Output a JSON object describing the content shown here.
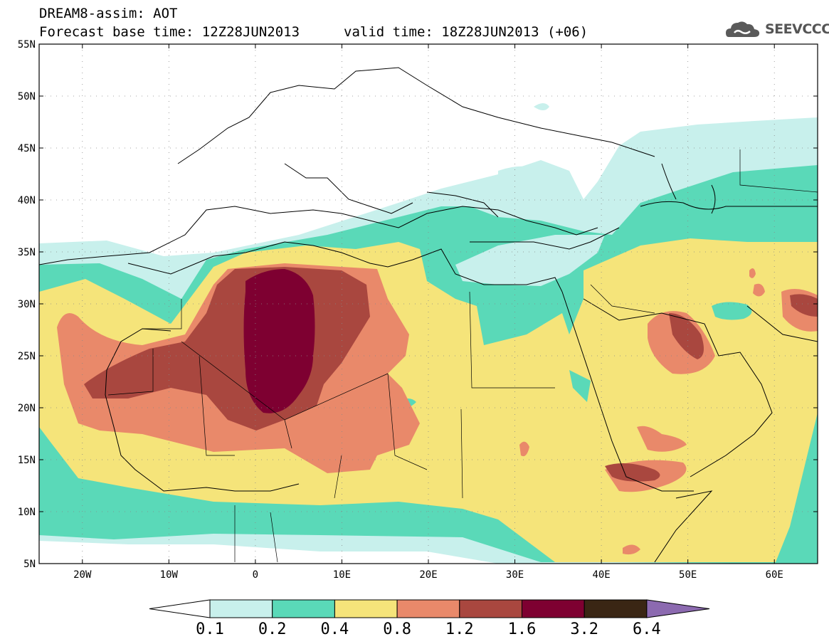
{
  "header": {
    "title": "DREAM8-assim: AOT",
    "base_time": "Forecast base time: 12Z28JUN2013",
    "valid_time": "valid time: 18Z28JUN2013 (+06)"
  },
  "logo": {
    "text": "SEEVCCC",
    "icon": "cloud-icon"
  },
  "map": {
    "x_ticks": [
      "20W",
      "10W",
      "0",
      "10E",
      "20E",
      "30E",
      "40E",
      "50E",
      "60E"
    ],
    "y_ticks": [
      "55N",
      "50N",
      "45N",
      "40N",
      "35N",
      "30N",
      "25N",
      "20N",
      "15N",
      "10N",
      "5N"
    ],
    "lon_range": [
      -25,
      65
    ],
    "lat_range": [
      5,
      55
    ]
  },
  "colorbar": {
    "labels": [
      "0.1",
      "0.2",
      "0.4",
      "0.8",
      "1.2",
      "1.6",
      "3.2",
      "6.4"
    ],
    "colors": [
      "#c8f0ec",
      "#5ad9b8",
      "#f5e47a",
      "#e9896a",
      "#a9473f",
      "#7e0031",
      "#3a2614"
    ],
    "over_color": "#8c6ab0",
    "under_color": "#ffffff"
  }
}
